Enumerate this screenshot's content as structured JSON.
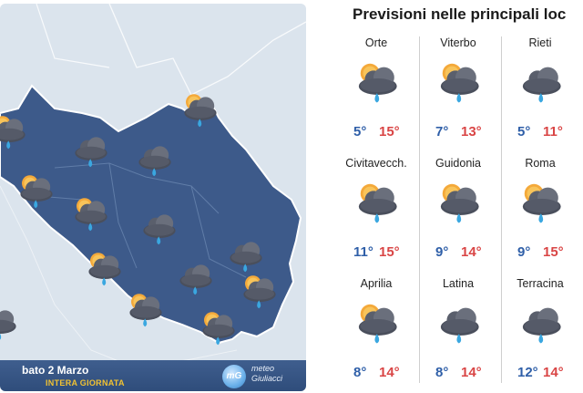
{
  "map": {
    "date": "bato 2 Marzo",
    "period": "INTERA GIORNATA",
    "brand_line1": "meteo",
    "brand_line2": "Giuliacci",
    "logo": "mG",
    "icons": [
      "partly-cloudy-rain",
      "cloud-rain",
      "cloud-rain",
      "partly-cloudy-rain",
      "partly-cloudy-rain",
      "partly-cloudy-rain",
      "cloud-rain",
      "cloud-rain",
      "partly-cloudy-rain",
      "cloud-rain",
      "partly-cloudy-rain",
      "partly-cloudy-rain",
      "partly-cloudy-rain",
      "cloud-rain"
    ]
  },
  "forecast": {
    "title": "Previsioni nelle principali loc",
    "cities": [
      {
        "name": "Orte",
        "min": "5°",
        "max": "15°",
        "icon": "partly-cloudy-rain"
      },
      {
        "name": "Viterbo",
        "min": "7°",
        "max": "13°",
        "icon": "partly-cloudy-rain"
      },
      {
        "name": "Rieti",
        "min": "5°",
        "max": "11°",
        "icon": "cloud-rain"
      },
      {
        "name": "Civitavecch.",
        "min": "11°",
        "max": "15°",
        "icon": "partly-cloudy-rain"
      },
      {
        "name": "Guidonia",
        "min": "9°",
        "max": "14°",
        "icon": "partly-cloudy-rain"
      },
      {
        "name": "Roma",
        "min": "9°",
        "max": "15°",
        "icon": "partly-cloudy-rain"
      },
      {
        "name": "Aprilia",
        "min": "8°",
        "max": "14°",
        "icon": "partly-cloudy-rain"
      },
      {
        "name": "Latina",
        "min": "8°",
        "max": "14°",
        "icon": "cloud-rain"
      },
      {
        "name": "Terracina",
        "min": "12°",
        "max": "14°",
        "icon": "cloud-rain"
      }
    ]
  }
}
